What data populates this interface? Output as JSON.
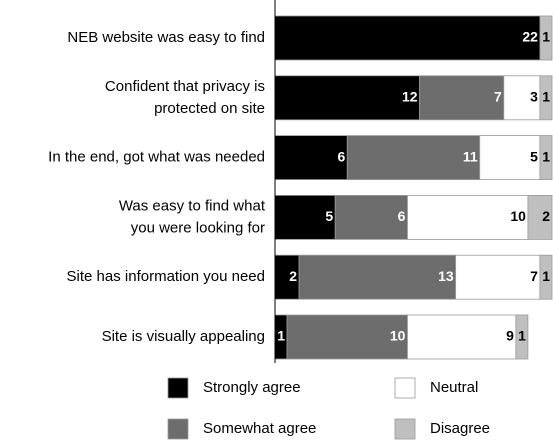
{
  "chart_data": {
    "type": "stacked_bar_horizontal",
    "categories": [
      [
        "NEB website was easy to find"
      ],
      [
        "Confident that privacy is",
        "protected on site"
      ],
      [
        "In the end, got what was needed"
      ],
      [
        "Was easy to find what",
        "you were looking for"
      ],
      [
        "Site has information you need"
      ],
      [
        "Site is visually appealing"
      ]
    ],
    "series": [
      {
        "name": "Strongly agree",
        "color": "#000000",
        "values": [
          22,
          12,
          6,
          5,
          2,
          1
        ]
      },
      {
        "name": "Somewhat agree",
        "color": "#6d6d6d",
        "values": [
          null,
          7,
          11,
          6,
          13,
          10
        ]
      },
      {
        "name": "Neutral",
        "color": "#ffffff",
        "values": [
          null,
          3,
          5,
          10,
          7,
          9
        ]
      },
      {
        "name": "Disagree",
        "color": "#bfbfbf",
        "values": [
          1,
          1,
          1,
          2,
          1,
          1
        ]
      }
    ],
    "xlim": [
      0,
      23
    ]
  }
}
